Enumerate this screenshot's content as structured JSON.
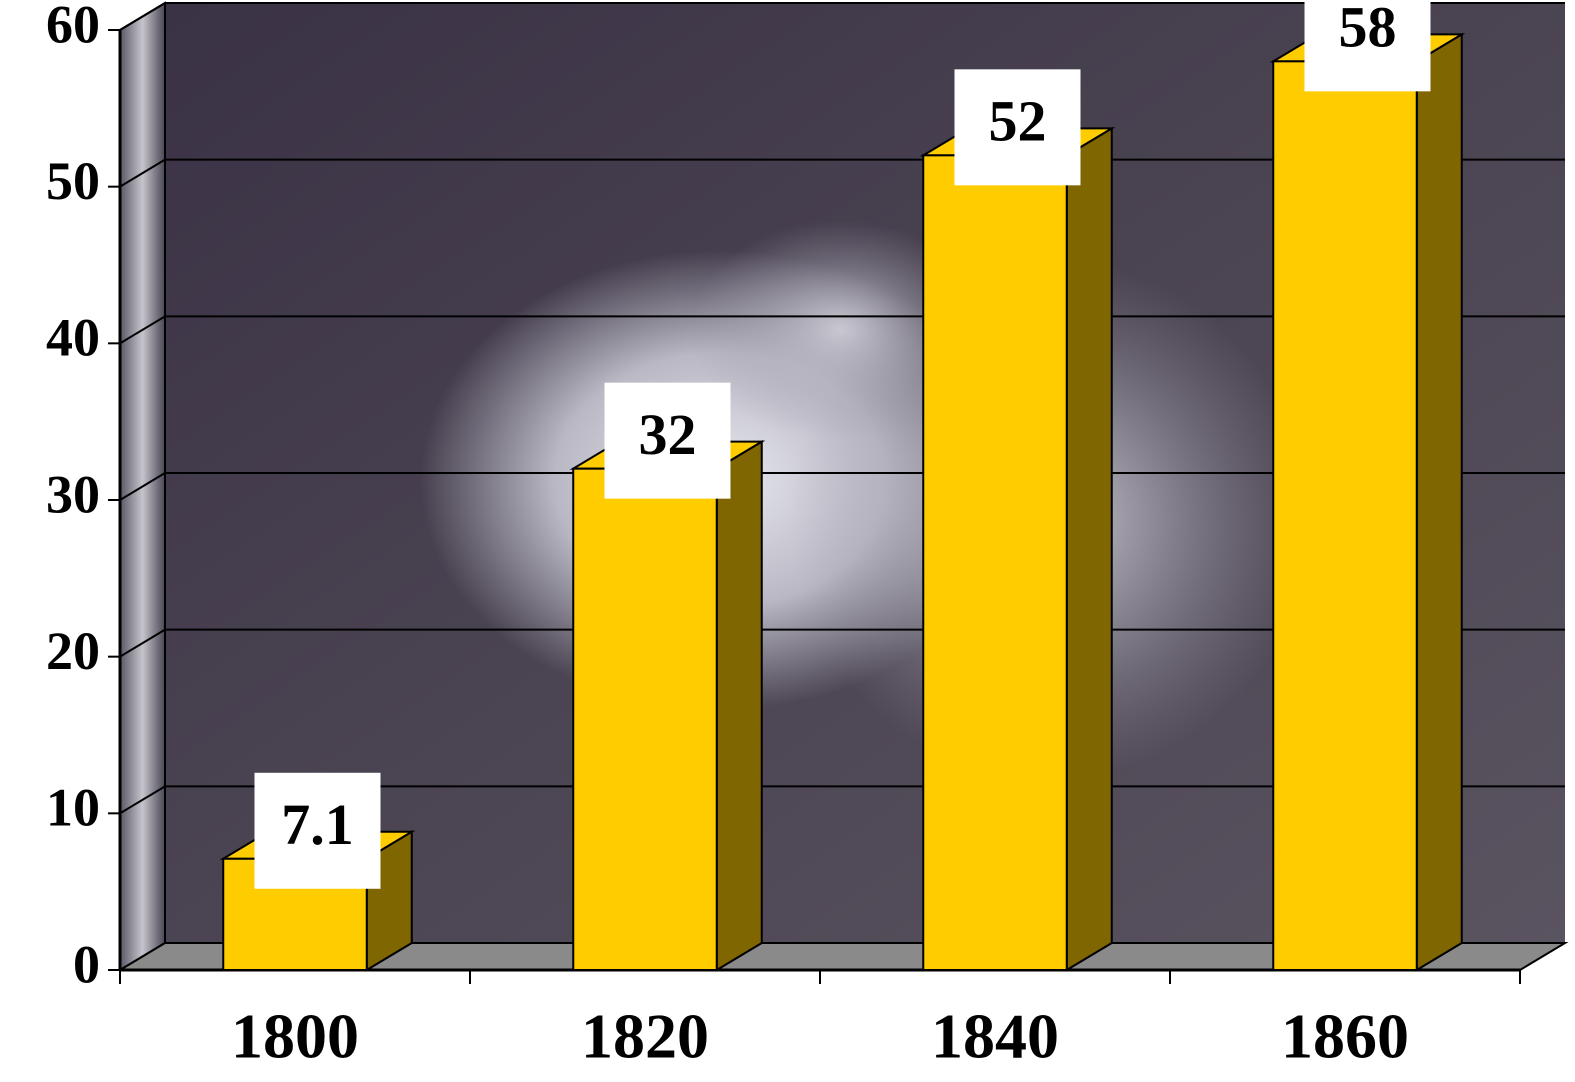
{
  "chart_data": {
    "type": "bar3d",
    "categories": [
      "1800",
      "1820",
      "1840",
      "1860"
    ],
    "values": [
      7.1,
      32,
      52,
      58
    ],
    "color": "#ffcc00",
    "ylim": [
      0,
      60
    ],
    "yticks": [
      0,
      10,
      20,
      30,
      40,
      50,
      60
    ],
    "grid": true
  }
}
